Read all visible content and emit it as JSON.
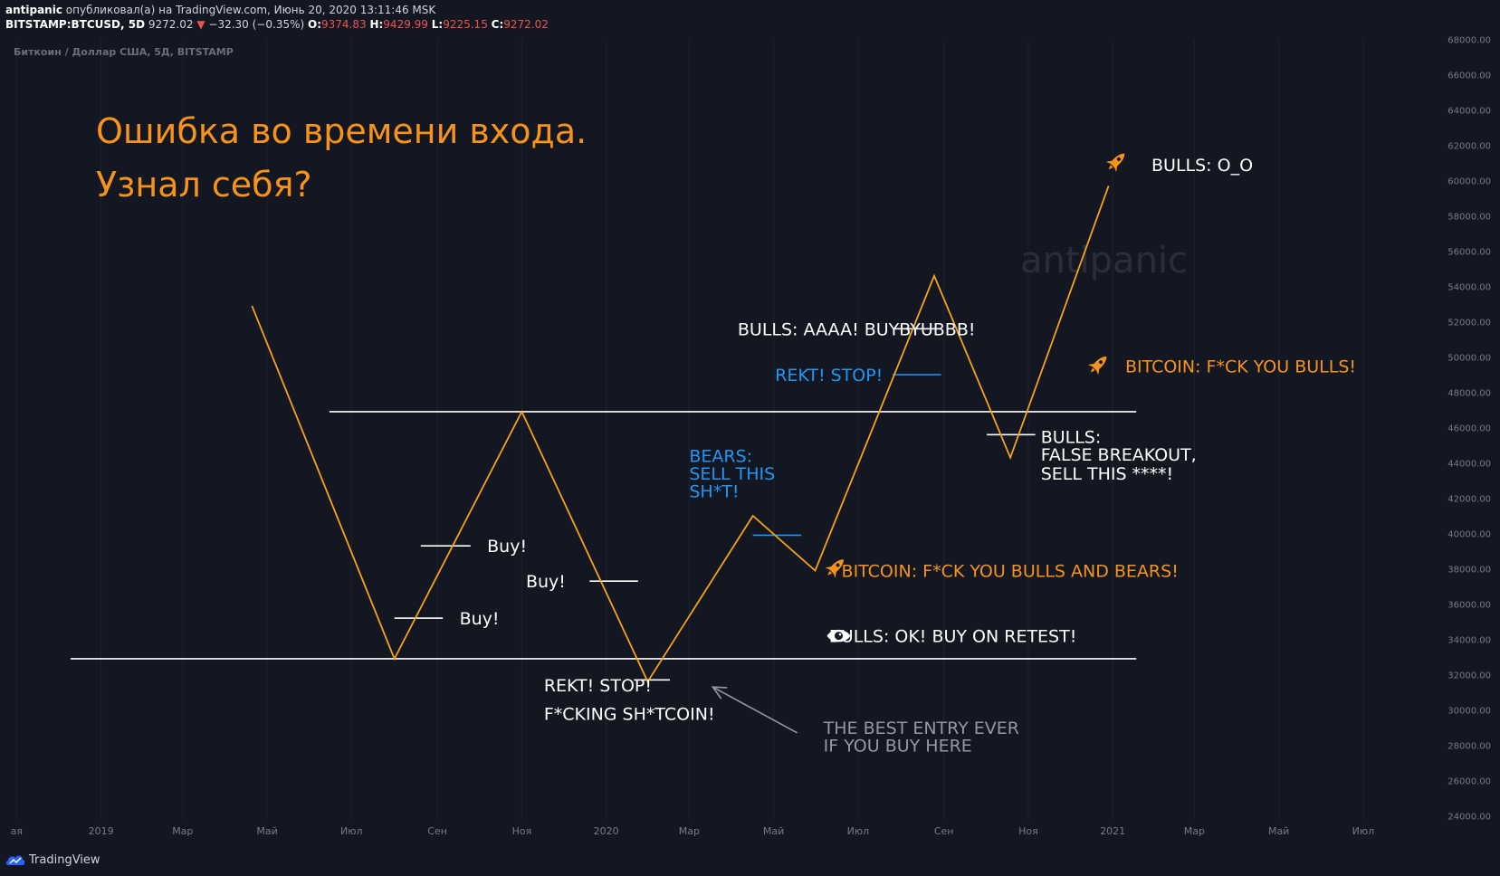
{
  "header": {
    "author": "antipanic",
    "published": "опубликовал(а) на TradingView.com, Июнь 20, 2020 13:11:46 MSK",
    "symbol": "BITSTAMP:BTCUSD, 5D",
    "price": "9272.02",
    "change_arrow": "▼",
    "change": "−32.30 (−0.35%)",
    "o_label": "O:",
    "o_value": "9374.83",
    "h_label": "H:",
    "h_value": "9429.99",
    "l_label": "L:",
    "l_value": "9225.15",
    "c_label": "C:",
    "c_value": "9272.02"
  },
  "chart_title_small": "Биткоин / Доллар США, 5Д, BITSTAMP",
  "headline": [
    "Ошибка во времени входа.",
    "Узнал себя?"
  ],
  "watermark": "antipanic",
  "footer": {
    "brand": "TradingView",
    "icon": "tradingview-logo-icon"
  },
  "colors": {
    "background": "#131722",
    "line": "#f7a21b",
    "orange_text": "#f7931a",
    "blue_text": "#2196f3",
    "white_text": "#ffffff",
    "grey_text": "#9598a1"
  },
  "chart_data": {
    "type": "line",
    "title": "",
    "xlabel": "",
    "ylabel": "",
    "y_axis_ticks": [
      "24000.00",
      "26000.00",
      "28000.00",
      "30000.00",
      "32000.00",
      "34000.00",
      "36000.00",
      "38000.00",
      "40000.00",
      "42000.00",
      "44000.00",
      "46000.00",
      "48000.00",
      "50000.00",
      "52000.00",
      "54000.00",
      "56000.00",
      "58000.00",
      "60000.00",
      "62000.00",
      "64000.00",
      "66000.00",
      "68000.00"
    ],
    "y_tick_values": [
      24000,
      26000,
      28000,
      30000,
      32000,
      34000,
      36000,
      38000,
      40000,
      42000,
      44000,
      46000,
      48000,
      50000,
      52000,
      54000,
      56000,
      58000,
      60000,
      62000,
      64000,
      66000,
      68000
    ],
    "ylim": [
      23000,
      69000
    ],
    "x_axis_ticks": [
      {
        "label": "ая",
        "date": "2018-11-01"
      },
      {
        "label": "2019",
        "date": "2019-01-01"
      },
      {
        "label": "Мар",
        "date": "2019-03-01"
      },
      {
        "label": "Май",
        "date": "2019-05-01"
      },
      {
        "label": "Июл",
        "date": "2019-07-01"
      },
      {
        "label": "Сен",
        "date": "2019-09-01"
      },
      {
        "label": "Ноя",
        "date": "2019-11-01"
      },
      {
        "label": "2020",
        "date": "2020-01-01"
      },
      {
        "label": "Мар",
        "date": "2020-03-01"
      },
      {
        "label": "Май",
        "date": "2020-05-01"
      },
      {
        "label": "Июл",
        "date": "2020-07-01"
      },
      {
        "label": "Сен",
        "date": "2020-09-01"
      },
      {
        "label": "Ноя",
        "date": "2020-11-01"
      },
      {
        "label": "2021",
        "date": "2021-01-01"
      },
      {
        "label": "Мар",
        "date": "2021-03-01"
      },
      {
        "label": "Май",
        "date": "2021-05-01"
      },
      {
        "label": "Июл",
        "date": "2021-07-01"
      }
    ],
    "xlim": [
      "2018-10-20",
      "2021-08-25"
    ],
    "grid": true,
    "series": [
      {
        "points": [
          {
            "x": "2019-04-20",
            "y": 52900
          },
          {
            "x": "2019-08-01",
            "y": 32900
          },
          {
            "x": "2019-11-01",
            "y": 46900
          },
          {
            "x": "2020-01-31",
            "y": 31600
          },
          {
            "x": "2020-04-16",
            "y": 41000
          },
          {
            "x": "2020-05-31",
            "y": 37900
          },
          {
            "x": "2020-08-25",
            "y": 54600
          },
          {
            "x": "2020-10-19",
            "y": 44300
          },
          {
            "x": "2020-12-29",
            "y": 59700
          }
        ]
      }
    ],
    "levels": [
      {
        "y": 46900,
        "x0": "2019-06-15",
        "x1": "2021-01-18",
        "color": "#ffffff"
      },
      {
        "y": 32900,
        "x0": "2018-12-10",
        "x1": "2021-01-18",
        "color": "#ffffff"
      }
    ],
    "marks": [
      {
        "y": 39300,
        "x0": "2019-08-20",
        "x1": "2019-09-25",
        "color": "#ffffff"
      },
      {
        "y": 35200,
        "x0": "2019-08-01",
        "x1": "2019-09-05",
        "color": "#ffffff"
      },
      {
        "y": 37300,
        "x0": "2019-12-20",
        "x1": "2020-01-24",
        "color": "#ffffff"
      },
      {
        "y": 31700,
        "x0": "2020-01-21",
        "x1": "2020-02-16",
        "color": "#ffffff"
      },
      {
        "y": 51600,
        "x0": "2020-07-26",
        "x1": "2020-08-30",
        "color": "#ffffff"
      },
      {
        "y": 49000,
        "x0": "2020-07-26",
        "x1": "2020-08-30",
        "color": "#2196f3"
      },
      {
        "y": 39900,
        "x0": "2020-04-16",
        "x1": "2020-05-21",
        "color": "#2196f3"
      },
      {
        "y": 45600,
        "x0": "2020-10-02",
        "x1": "2020-11-06",
        "color": "#ffffff"
      }
    ],
    "annotations": [
      {
        "text": "Buy!",
        "color": "white",
        "x": "2019-10-07",
        "y": 39300
      },
      {
        "text": "Buy!",
        "color": "white",
        "x": "2019-09-17",
        "y": 35200
      },
      {
        "text": "Buy!",
        "color": "white",
        "x": "2019-11-04",
        "y": 37300
      },
      {
        "text": "REKT! STOP!",
        "color": "white",
        "x": "2019-11-17",
        "y": 31400
      },
      {
        "text": "F*CKING SH*TCOIN!",
        "color": "white",
        "x": "2019-11-17",
        "y": 29800
      },
      {
        "text": "BEARS:",
        "color": "blue",
        "x": "2020-03-01",
        "y": 44400
      },
      {
        "text": "SELL THIS",
        "color": "blue",
        "x": "2020-03-01",
        "y": 43400
      },
      {
        "text": "SH*T!",
        "color": "blue",
        "x": "2020-03-01",
        "y": 42400
      },
      {
        "text": "BULLS: AAAA! BUYBYUBBB!",
        "color": "white",
        "x": "2020-04-05",
        "y": 51600
      },
      {
        "text": "REKT! STOP!",
        "color": "blue",
        "x": "2020-05-02",
        "y": 49000
      },
      {
        "text": "BITCOIN: F*CK YOU BULLS AND BEARS!",
        "color": "orange",
        "x": "2020-06-19",
        "y": 37900
      },
      {
        "text": "BULLS: OK! BUY ON RETEST!",
        "color": "white",
        "x": "2020-06-10",
        "y": 34200
      },
      {
        "text": "THE BEST ENTRY EVER",
        "color": "grey",
        "x": "2020-06-06",
        "y": 29000
      },
      {
        "text": "IF YOU BUY HERE",
        "color": "grey",
        "x": "2020-06-06",
        "y": 28000
      },
      {
        "text": "BULLS:",
        "color": "white",
        "x": "2020-11-10",
        "y": 45500
      },
      {
        "text": "FALSE BREAKOUT,",
        "color": "white",
        "x": "2020-11-10",
        "y": 44500
      },
      {
        "text": "SELL THIS ****!",
        "color": "white",
        "x": "2020-11-10",
        "y": 43400
      },
      {
        "text": "BITCOIN: F*CK YOU BULLS!",
        "color": "orange",
        "x": "2021-01-10",
        "y": 49500
      },
      {
        "text": "BULLS: O_O",
        "color": "white",
        "x": "2021-01-29",
        "y": 60900
      }
    ],
    "icons": [
      {
        "name": "rocket-icon",
        "x": "2020-06-15",
        "y": 38100
      },
      {
        "name": "rocket-icon",
        "x": "2020-12-22",
        "y": 49600
      },
      {
        "name": "rocket-icon",
        "x": "2021-01-04",
        "y": 61100
      },
      {
        "name": "eye-icon",
        "x": "2020-06-17",
        "y": 34200
      }
    ],
    "arrow": {
      "from": {
        "x": "2020-05-18",
        "y": 28700
      },
      "to": {
        "x": "2020-03-18",
        "y": 31300
      }
    }
  }
}
